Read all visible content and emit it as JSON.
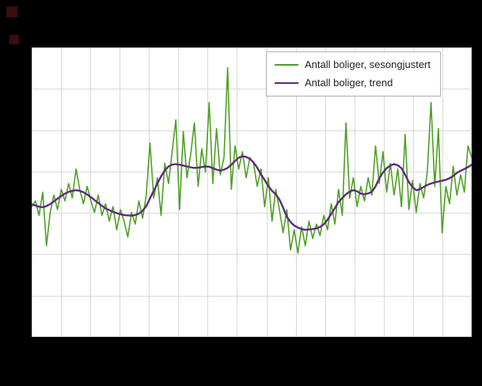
{
  "figure": {
    "background": "#000000",
    "plot_background": "#ffffff",
    "grid_color": "#d9d9d9",
    "decorations": [
      {
        "name": "top-left-square",
        "color": "#3a0d10"
      },
      {
        "name": "left-square",
        "color": "#3a0d10"
      }
    ]
  },
  "legend": {
    "items": [
      {
        "label": "Antall boliger, sesongjustert",
        "color": "#4ea023"
      },
      {
        "label": "Antall boliger, trend",
        "color": "#5e2b7e"
      }
    ]
  },
  "chart_data": {
    "type": "line",
    "title": "",
    "xlabel": "",
    "ylabel": "",
    "x": "monthly index 0-119 (axis tick labels not visible in image)",
    "ylim": [
      0,
      100
    ],
    "x_divisions": 15,
    "y_divisions": 7,
    "grid": true,
    "legend_position": "top-right",
    "axis_labels_visible": false,
    "series": [
      {
        "name": "Antall boliger, sesongjustert",
        "color": "#4ea023",
        "width": 1.6,
        "values": [
          45,
          47,
          42,
          50,
          31.5,
          43,
          49,
          44,
          51,
          47,
          53,
          48,
          58,
          51,
          46,
          52,
          47,
          43,
          49,
          42,
          46,
          40,
          45,
          37,
          44,
          40,
          34.5,
          43,
          39,
          47,
          41,
          49,
          67,
          48,
          55,
          42,
          60,
          53,
          64,
          75,
          44,
          71,
          55,
          63,
          74,
          52,
          65,
          57,
          81,
          53,
          72,
          56,
          62,
          93,
          51,
          66,
          58,
          64,
          55,
          62,
          60,
          52,
          58,
          45,
          55,
          40,
          51,
          44,
          36,
          44,
          30,
          37,
          29,
          38,
          31.5,
          40,
          34,
          39,
          35,
          42,
          37,
          46,
          39,
          51,
          42,
          74,
          48,
          55,
          45,
          52,
          47,
          55,
          49,
          66,
          53,
          64,
          50,
          60,
          49,
          58,
          45,
          70,
          44,
          54,
          43,
          53,
          48,
          57,
          81,
          52,
          72,
          36,
          52,
          46,
          59,
          49,
          56,
          50,
          66,
          62
        ]
      },
      {
        "name": "Antall boliger, trend",
        "color": "#5e2b7e",
        "width": 2.4,
        "values": [
          45.8,
          45.4,
          45.0,
          44.8,
          45.2,
          45.9,
          46.8,
          47.8,
          48.7,
          49.5,
          50.1,
          50.5,
          50.7,
          50.5,
          50.0,
          49.2,
          48.3,
          47.3,
          46.3,
          45.3,
          44.4,
          43.8,
          43.2,
          42.8,
          42.4,
          42.1,
          42.0,
          41.9,
          42.1,
          42.6,
          43.6,
          45.2,
          47.9,
          50.5,
          53.0,
          55.5,
          57.5,
          58.9,
          59.5,
          59.7,
          59.5,
          59.2,
          58.9,
          58.6,
          58.4,
          58.5,
          58.7,
          58.9,
          58.8,
          58.3,
          57.8,
          57.5,
          57.8,
          58.4,
          59.5,
          60.8,
          61.9,
          62.4,
          62.2,
          61.5,
          60.3,
          58.5,
          56.2,
          54.2,
          52.1,
          50.5,
          49.3,
          47.5,
          44.7,
          41.5,
          39.7,
          38.5,
          37.8,
          37.3,
          37.0,
          37.1,
          37.3,
          37.5,
          38.0,
          38.9,
          40.5,
          42.5,
          44.5,
          46.6,
          48.0,
          49.3,
          50.2,
          50.7,
          50.3,
          49.5,
          49.3,
          49.6,
          50.1,
          52.0,
          54.8,
          56.8,
          58.3,
          59.2,
          59.7,
          59.3,
          58.3,
          56.0,
          53.5,
          51.8,
          50.7,
          51.0,
          51.8,
          52.5,
          53.0,
          53.4,
          53.7,
          54.0,
          54.3,
          54.8,
          55.6,
          56.7,
          57.4,
          58.0,
          58.7,
          59.5
        ]
      }
    ]
  }
}
